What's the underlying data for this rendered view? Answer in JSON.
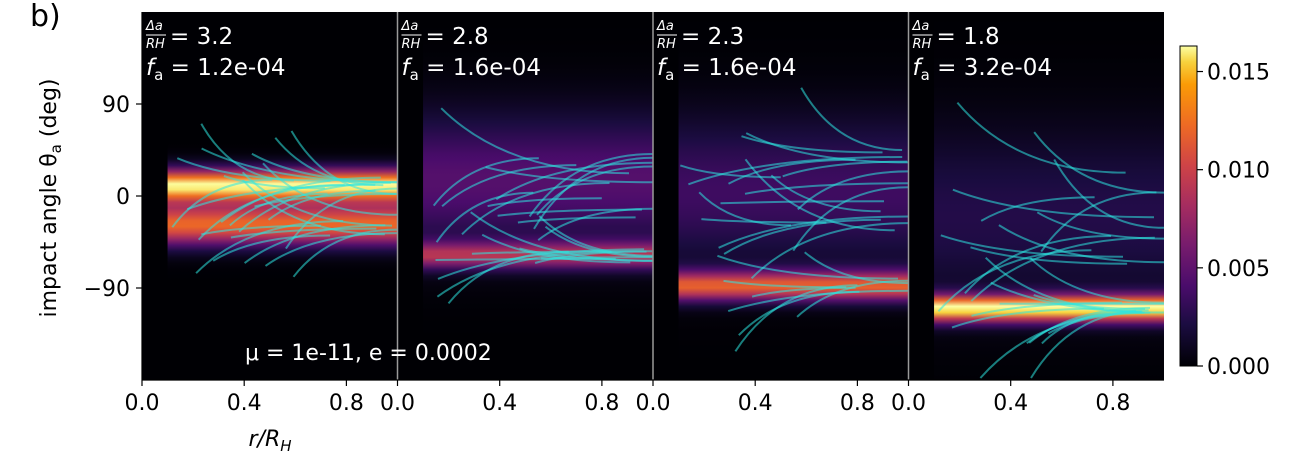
{
  "figure": {
    "label": "b)",
    "ylabel": "impact angle θ",
    "ylabel_sub": "a",
    "ylabel_unit": " (deg)",
    "xlabel": "r/R",
    "xlabel_sub": "H",
    "annotation": "μ = 1e-11, e = 0.0002"
  },
  "colorbar": {
    "colormap": "inferno",
    "ticks": [
      "0.000",
      "0.005",
      "0.010",
      "0.015"
    ],
    "range": [
      0,
      0.0163
    ]
  },
  "colors": {
    "background": "#000004",
    "trajectory": "#2ee6e0",
    "divider": "#9a9a9a"
  },
  "chart_data": {
    "type": "heatmap",
    "xlim": [
      0,
      1
    ],
    "ylim": [
      -180,
      180
    ],
    "xticks": [
      "0.0",
      "0.4",
      "0.8"
    ],
    "yticks": [
      "90",
      "0",
      "−90"
    ],
    "yticks_values": [
      90,
      0,
      -90
    ],
    "panels": [
      {
        "da_rh": "3.2",
        "fa": "1.2e-04",
        "peaks": [
          {
            "theta": 10,
            "width": 11,
            "amp": 1.0
          },
          {
            "theta": -28,
            "width": 14,
            "amp": 0.75
          }
        ]
      },
      {
        "da_rh": "2.8",
        "fa": "1.6e-04",
        "peaks": [
          {
            "theta": 15,
            "width": 45,
            "amp": 0.28
          },
          {
            "theta": -58,
            "width": 9,
            "amp": 0.5
          }
        ]
      },
      {
        "da_rh": "2.3",
        "fa": "1.6e-04",
        "peaks": [
          {
            "theta": 5,
            "width": 50,
            "amp": 0.22
          },
          {
            "theta": -88,
            "width": 10,
            "amp": 0.7
          }
        ]
      },
      {
        "da_rh": "1.8",
        "fa": "3.2e-04",
        "peaks": [
          {
            "theta": -20,
            "width": 60,
            "amp": 0.15
          },
          {
            "theta": -110,
            "width": 9,
            "amp": 1.0
          }
        ]
      }
    ]
  }
}
